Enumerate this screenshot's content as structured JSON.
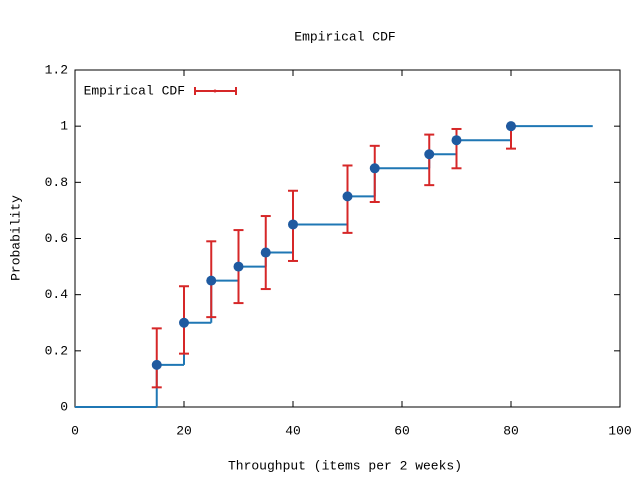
{
  "chart_data": {
    "type": "ecdf",
    "title": "Empirical CDF",
    "x_label": "Throughput (items per 2 weeks)",
    "y_label": "Probability",
    "xlim": [
      0,
      100
    ],
    "xticks": [
      0,
      20,
      40,
      60,
      80,
      100
    ],
    "ylim": [
      0,
      1.2
    ],
    "yticks": [
      0,
      0.2,
      0.4,
      0.6,
      0.8,
      1,
      1.2
    ],
    "legend_position": "upper-left",
    "step": {
      "color": "#1f77b4",
      "x": [
        0,
        15,
        20,
        25,
        30,
        35,
        40,
        50,
        55,
        65,
        70,
        80,
        95
      ],
      "y": [
        0,
        0.15,
        0.3,
        0.45,
        0.5,
        0.55,
        0.65,
        0.75,
        0.85,
        0.9,
        0.95,
        1,
        1
      ]
    },
    "series": [
      {
        "name": "Empirical CDF",
        "color": "#1f5aa0",
        "error_color": "#d62728",
        "x": [
          15,
          20,
          25,
          30,
          35,
          40,
          50,
          55,
          65,
          70,
          80
        ],
        "y": [
          0.15,
          0.3,
          0.45,
          0.5,
          0.55,
          0.65,
          0.75,
          0.85,
          0.9,
          0.95,
          1
        ],
        "lower": [
          0.07,
          0.19,
          0.32,
          0.37,
          0.42,
          0.52,
          0.62,
          0.73,
          0.79,
          0.85,
          0.92
        ],
        "upper": [
          0.28,
          0.43,
          0.59,
          0.63,
          0.68,
          0.77,
          0.86,
          0.93,
          0.97,
          0.99,
          1
        ]
      }
    ]
  }
}
